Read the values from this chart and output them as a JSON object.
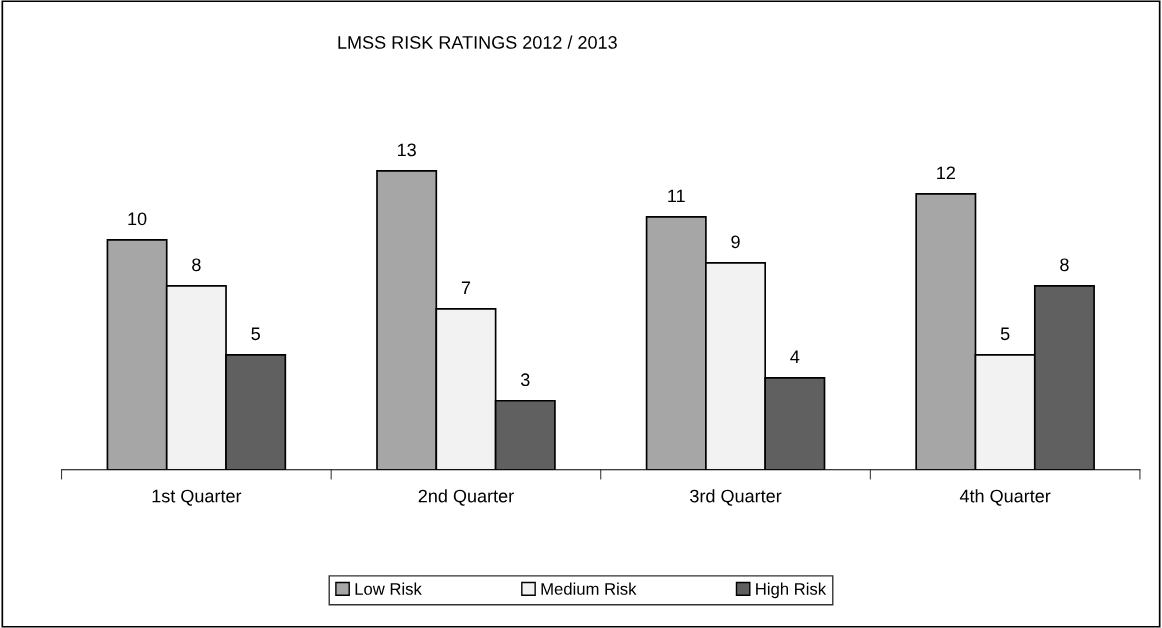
{
  "chart_data": {
    "type": "bar",
    "title": "LMSS RISK RATINGS 2012 / 2013",
    "categories": [
      "1st Quarter",
      "2nd Quarter",
      "3rd Quarter",
      "4th Quarter"
    ],
    "series": [
      {
        "name": "Low Risk",
        "color": "#a6a6a6",
        "values": [
          10,
          13,
          11,
          12
        ]
      },
      {
        "name": "Medium Risk",
        "color": "#f2f2f2",
        "values": [
          8,
          7,
          9,
          5
        ]
      },
      {
        "name": "High Risk",
        "color": "#606060",
        "values": [
          5,
          3,
          4,
          8
        ]
      }
    ],
    "data_labels": true,
    "legend": "bottom",
    "grid": false
  }
}
